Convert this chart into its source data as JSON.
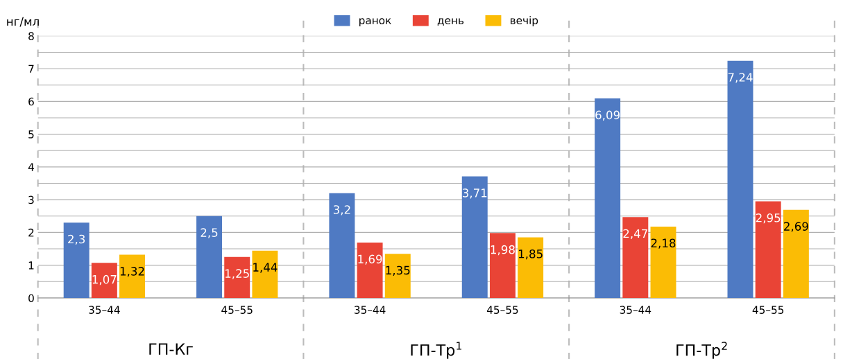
{
  "chart_data": {
    "type": "bar",
    "ylabel": "нг/мл",
    "categories": [
      "35–44",
      "45–55",
      "35–44",
      "45–55",
      "35–44",
      "45–55"
    ],
    "series": [
      {
        "name": "ранок",
        "color": "#4f7ac3",
        "values": [
          2.3,
          2.5,
          3.2,
          3.71,
          6.09,
          7.24
        ],
        "value_labels": [
          "2,3",
          "2,5",
          "3,2",
          "3,71",
          "6,09",
          "7,24"
        ]
      },
      {
        "name": "день",
        "color": "#e94436",
        "values": [
          1.07,
          1.25,
          1.69,
          1.98,
          2.47,
          2.95
        ],
        "value_labels": [
          "1,07",
          "1,25",
          "1,69",
          "1,98",
          "2,47",
          "2,95"
        ]
      },
      {
        "name": "вечір",
        "color": "#fbbc05",
        "values": [
          1.32,
          1.44,
          1.35,
          1.85,
          2.18,
          2.69
        ],
        "value_labels": [
          "1,32",
          "1,44",
          "1,35",
          "1,85",
          "2,18",
          "2,69"
        ]
      }
    ],
    "annotations": [
      "ГП-Кг",
      "ГП-Тр$^{1}$",
      "ГП-Тр$^{2}$"
    ],
    "ylim": [
      0,
      8
    ],
    "yticks": [
      0,
      {
        "value": 0.5,
        "label": null
      },
      1,
      {
        "value": 1.5,
        "label": null
      },
      2,
      {
        "value": 2.5,
        "label": null
      },
      3,
      {
        "value": 3.5,
        "label": null
      },
      4,
      {
        "value": 4.5,
        "label": null
      },
      5,
      {
        "value": 5.5,
        "label": null
      },
      6,
      {
        "value": 6.5,
        "label": null
      },
      7,
      {
        "value": 7.5,
        "label": null
      },
      8
    ],
    "grid": "y",
    "legend": "top"
  }
}
